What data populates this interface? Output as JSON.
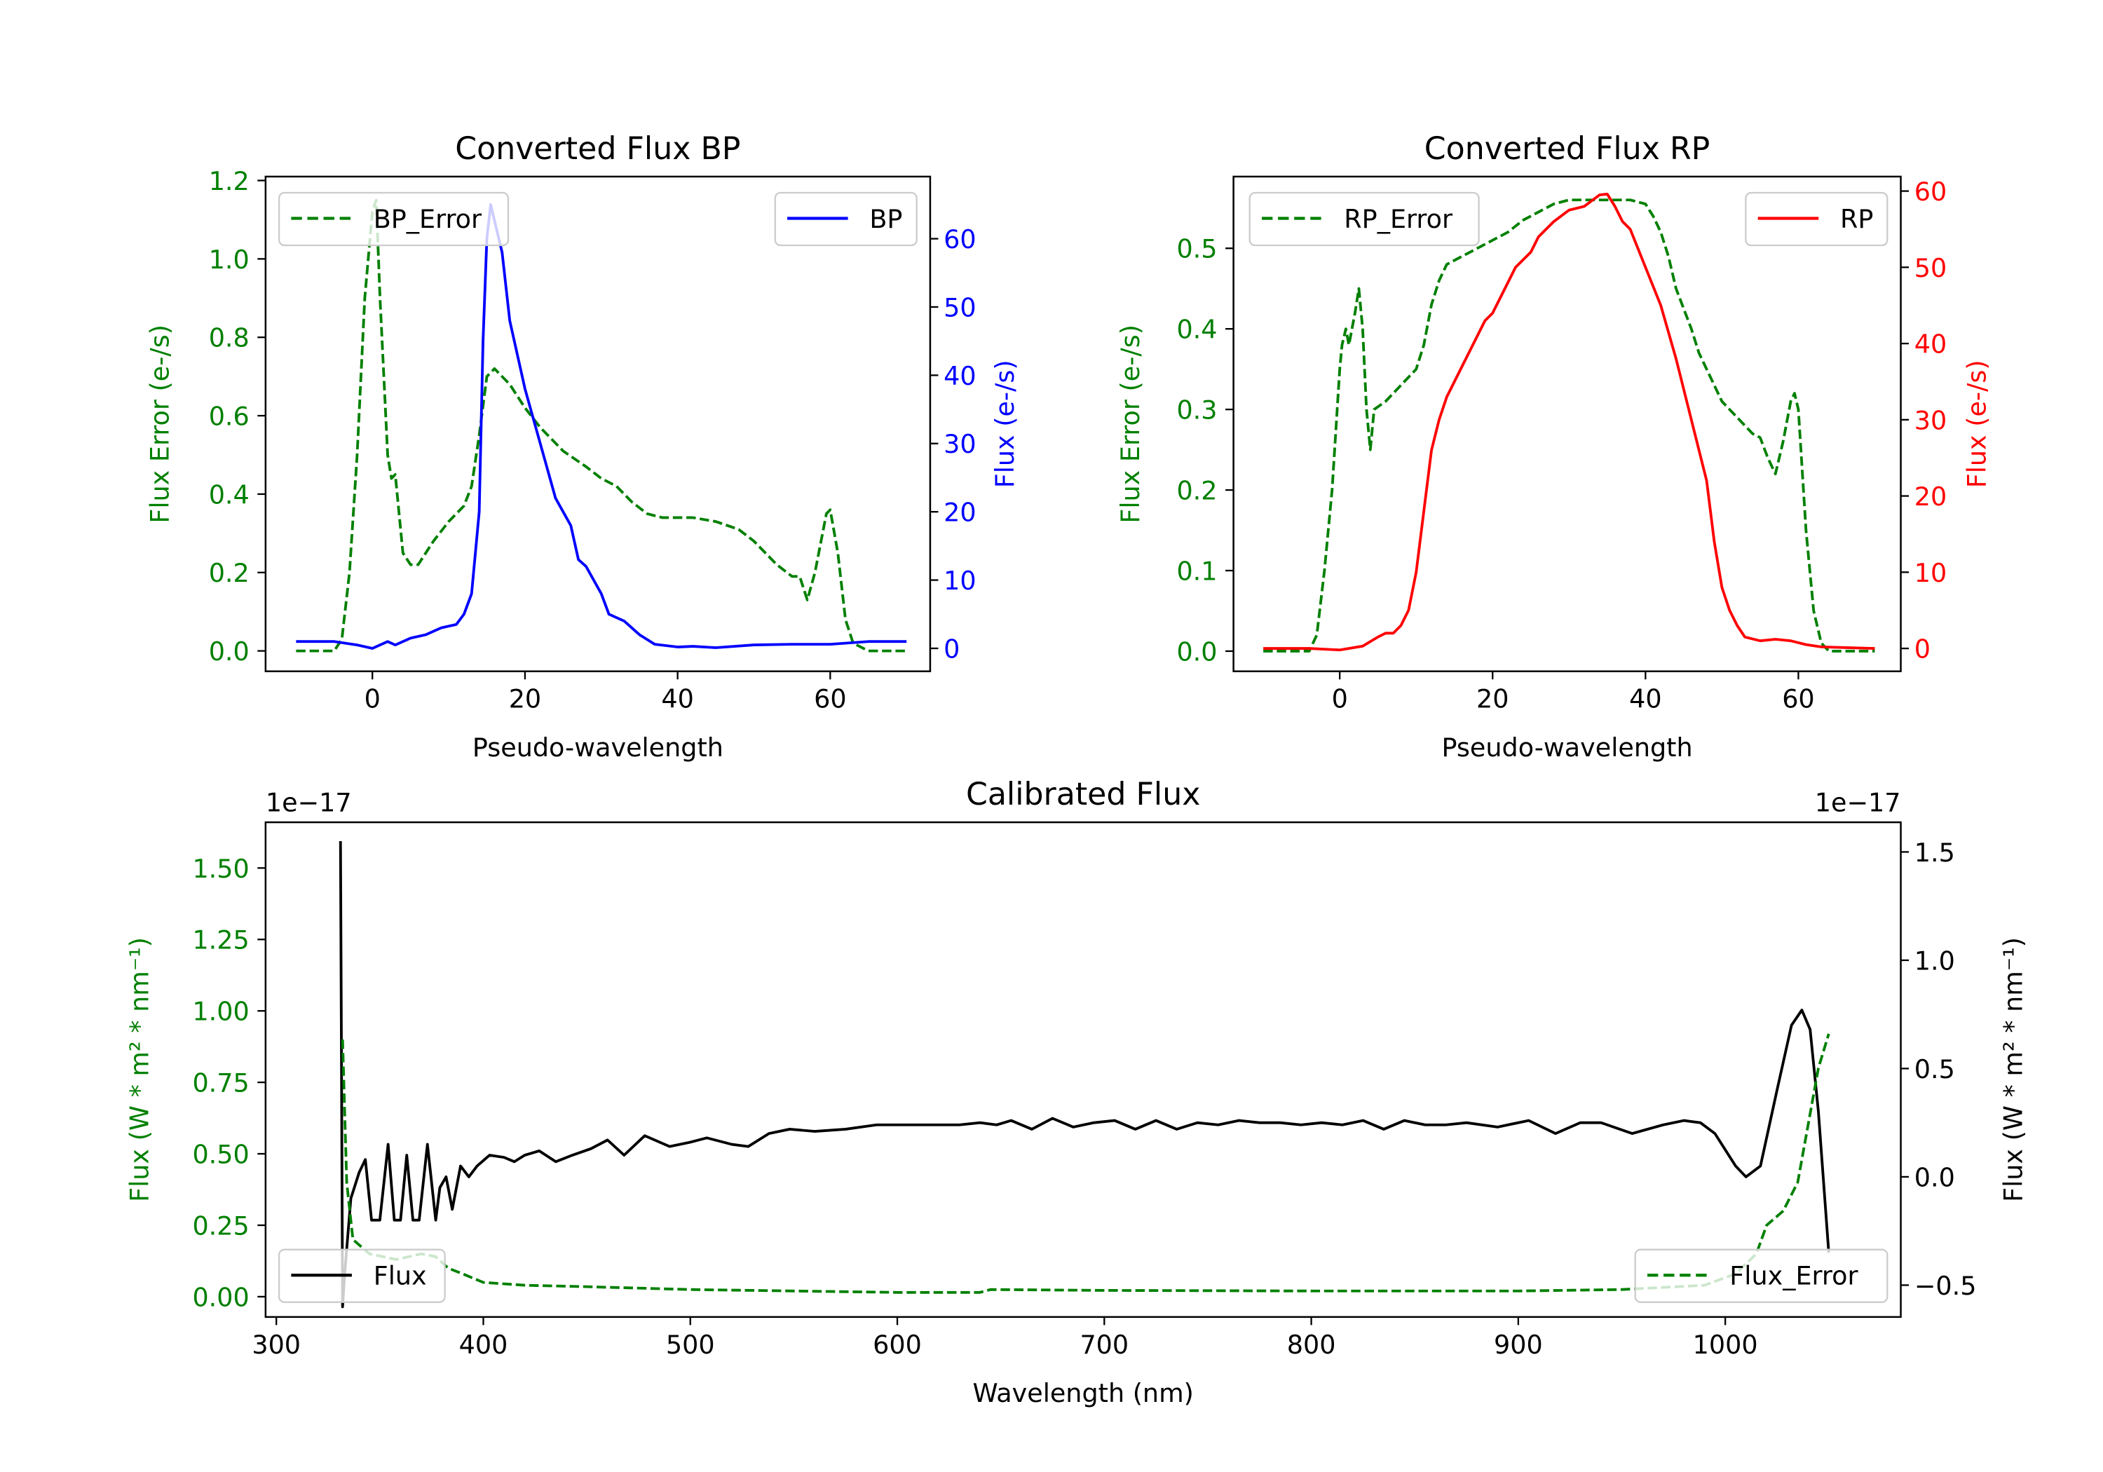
{
  "chart_data": [
    {
      "type": "line",
      "title": "Converted Flux BP",
      "xlabel": "Pseudo-wavelength",
      "ylabel_left": "Flux Error (e-/s)",
      "ylabel_right": "Flux (e-/s)",
      "left_color": "#008000",
      "right_color": "#0000ff",
      "xlim": [
        -14,
        73.1
      ],
      "ylim_left": [
        -0.052,
        1.21
      ],
      "ylim_right": [
        -3.36,
        69.1
      ],
      "xticks": {
        "values": [
          0,
          20,
          40,
          60
        ],
        "labels": [
          "0",
          "20",
          "40",
          "60"
        ]
      },
      "yticks_left": {
        "values": [
          0,
          0.2,
          0.4,
          0.6,
          0.8,
          1.0,
          1.2
        ],
        "labels": [
          "0.0",
          "0.2",
          "0.4",
          "0.6",
          "0.8",
          "1.0",
          "1.2"
        ]
      },
      "yticks_right": {
        "values": [
          0,
          10,
          20,
          30,
          40,
          50,
          60
        ],
        "labels": [
          "0",
          "10",
          "20",
          "30",
          "40",
          "50",
          "60"
        ]
      },
      "grid": false,
      "series": [
        {
          "name": "BP_Error",
          "axis": "left",
          "style": "dashed",
          "color": "#008000",
          "legend": "upper-left",
          "x": [
            -10,
            -5,
            -4,
            -3,
            -2,
            -1,
            0,
            0.5,
            1,
            2,
            2.5,
            3,
            3.5,
            4,
            5,
            6,
            7,
            8,
            10,
            12,
            13,
            14,
            15,
            16,
            18,
            20,
            22,
            25,
            28,
            30,
            32,
            34,
            36,
            38,
            42,
            45,
            48,
            50,
            53,
            55,
            56,
            57,
            58,
            59.5,
            60,
            61,
            62,
            63,
            65,
            70
          ],
          "y": [
            0,
            0,
            0.03,
            0.2,
            0.5,
            0.9,
            1.12,
            1.15,
            0.9,
            0.5,
            0.44,
            0.45,
            0.35,
            0.25,
            0.22,
            0.22,
            0.25,
            0.28,
            0.33,
            0.37,
            0.42,
            0.55,
            0.7,
            0.72,
            0.68,
            0.62,
            0.57,
            0.51,
            0.47,
            0.44,
            0.42,
            0.38,
            0.35,
            0.34,
            0.34,
            0.33,
            0.31,
            0.28,
            0.22,
            0.19,
            0.19,
            0.13,
            0.2,
            0.35,
            0.36,
            0.25,
            0.08,
            0.02,
            0,
            0
          ]
        },
        {
          "name": "BP",
          "axis": "right",
          "style": "solid",
          "color": "#0000ff",
          "legend": "upper-right",
          "x": [
            -10,
            -5,
            -2,
            0,
            2,
            3,
            5,
            7,
            9,
            11,
            12,
            13,
            14,
            14.5,
            15,
            15.5,
            17,
            18,
            20,
            22,
            24,
            26,
            27,
            28,
            30,
            31,
            33,
            35,
            37,
            40,
            42,
            45,
            50,
            55,
            60,
            65,
            70
          ],
          "y": [
            1,
            1,
            0.5,
            0,
            1,
            0.5,
            1.5,
            2,
            3,
            3.5,
            5,
            8,
            20,
            45,
            60,
            65,
            58,
            48,
            38,
            30,
            22,
            18,
            13,
            12,
            8,
            5,
            4,
            2,
            0.6,
            0.2,
            0.3,
            0.1,
            0.5,
            0.6,
            0.6,
            1,
            1
          ]
        }
      ]
    },
    {
      "type": "line",
      "title": "Converted Flux RP",
      "xlabel": "Pseudo-wavelength",
      "ylabel_left": "Flux Error (e-/s)",
      "ylabel_right": "Flux (e-/s)",
      "left_color": "#008000",
      "right_color": "#ff0000",
      "xlim": [
        -13.9,
        73.4
      ],
      "ylim_left": [
        -0.025,
        0.589
      ],
      "ylim_right": [
        -3.0,
        61.9
      ],
      "xticks": {
        "values": [
          0,
          20,
          40,
          60
        ],
        "labels": [
          "0",
          "20",
          "40",
          "60"
        ]
      },
      "yticks_left": {
        "values": [
          0,
          0.1,
          0.2,
          0.3,
          0.4,
          0.5
        ],
        "labels": [
          "0.0",
          "0.1",
          "0.2",
          "0.3",
          "0.4",
          "0.5"
        ]
      },
      "yticks_right": {
        "values": [
          0,
          10,
          20,
          30,
          40,
          50,
          60
        ],
        "labels": [
          "0",
          "10",
          "20",
          "30",
          "40",
          "50",
          "60"
        ]
      },
      "grid": false,
      "series": [
        {
          "name": "RP_Error",
          "axis": "left",
          "style": "dashed",
          "color": "#008000",
          "legend": "upper-left",
          "x": [
            -10,
            -4,
            -3,
            -2,
            -1,
            0,
            0.3,
            0.8,
            1.2,
            2,
            2.5,
            3,
            3.5,
            4,
            4.5,
            6,
            7,
            8,
            9,
            10,
            11,
            12,
            13,
            14,
            16,
            18,
            20,
            22,
            24,
            26,
            28,
            30,
            32,
            34,
            36,
            38,
            40,
            41,
            42,
            43,
            44,
            46,
            47,
            48,
            50,
            52,
            54,
            55,
            56,
            57,
            58,
            59,
            59.5,
            60,
            61,
            62,
            63,
            64,
            70
          ],
          "y": [
            0,
            0,
            0.02,
            0.1,
            0.2,
            0.35,
            0.38,
            0.4,
            0.38,
            0.42,
            0.45,
            0.4,
            0.3,
            0.25,
            0.3,
            0.31,
            0.32,
            0.33,
            0.34,
            0.35,
            0.38,
            0.43,
            0.46,
            0.48,
            0.49,
            0.5,
            0.51,
            0.52,
            0.535,
            0.545,
            0.555,
            0.56,
            0.56,
            0.56,
            0.56,
            0.56,
            0.555,
            0.54,
            0.52,
            0.49,
            0.45,
            0.4,
            0.37,
            0.35,
            0.31,
            0.29,
            0.27,
            0.265,
            0.24,
            0.22,
            0.26,
            0.31,
            0.32,
            0.3,
            0.15,
            0.05,
            0.01,
            0,
            0
          ]
        },
        {
          "name": "RP",
          "axis": "right",
          "style": "solid",
          "color": "#ff0000",
          "legend": "upper-right",
          "x": [
            -10,
            -4,
            0,
            3,
            5,
            6,
            7,
            8,
            9,
            10,
            11,
            12,
            13,
            14,
            15,
            16,
            17,
            18,
            19,
            20,
            21,
            22,
            23,
            24,
            25,
            26,
            28,
            30,
            32,
            34,
            35,
            36,
            37,
            38,
            40,
            42,
            44,
            46,
            48,
            49,
            50,
            51,
            52,
            53,
            55,
            57,
            59,
            61,
            63,
            70
          ],
          "y": [
            0,
            0,
            -0.2,
            0.3,
            1.5,
            2,
            2,
            3,
            5,
            10,
            18,
            26,
            30,
            33,
            35,
            37,
            39,
            41,
            43,
            44,
            46,
            48,
            50,
            51,
            52,
            54,
            56,
            57.5,
            58,
            59.5,
            59.6,
            58,
            56,
            55,
            50,
            45,
            38,
            30,
            22,
            14,
            8,
            5,
            3,
            1.5,
            1,
            1.2,
            1,
            0.5,
            0.2,
            0
          ]
        }
      ]
    },
    {
      "type": "line",
      "title": "Calibrated Flux",
      "xlabel": "Wavelength (nm)",
      "ylabel_left": "Flux (W * m² * nm⁻¹)",
      "ylabel_right": "Flux (W * m² * nm⁻¹)",
      "offset_left": "1e−17",
      "offset_right": "1e−17",
      "left_color": "#008000",
      "right_color": "#000000",
      "xlim": [
        294.8,
        1084.8
      ],
      "ylim_left": [
        -0.071,
        1.66
      ],
      "ylim_right": [
        -0.647,
        1.637
      ],
      "xticks": {
        "values": [
          300,
          400,
          500,
          600,
          700,
          800,
          900,
          1000
        ],
        "labels": [
          "300",
          "400",
          "500",
          "600",
          "700",
          "800",
          "900",
          "1000"
        ]
      },
      "yticks_left": {
        "values": [
          0,
          0.25,
          0.5,
          0.75,
          1.0,
          1.25,
          1.5
        ],
        "labels": [
          "0.00",
          "0.25",
          "0.50",
          "0.75",
          "1.00",
          "1.25",
          "1.50"
        ]
      },
      "yticks_right": {
        "values": [
          -0.5,
          0,
          0.5,
          1.0,
          1.5
        ],
        "labels": [
          "−0.5",
          "0.0",
          "0.5",
          "1.0",
          "1.5"
        ]
      },
      "grid": false,
      "series": [
        {
          "name": "Flux",
          "axis": "right",
          "style": "solid",
          "color": "#000000",
          "legend": "lower-left",
          "x": [
            331,
            332,
            333,
            336,
            340,
            343,
            346,
            350,
            354,
            357,
            360,
            363,
            366,
            369,
            373,
            377,
            379,
            382,
            385,
            389,
            393,
            397,
            403,
            410,
            415,
            420,
            427,
            435,
            443,
            452,
            460,
            468,
            478,
            490,
            500,
            508,
            520,
            528,
            538,
            548,
            560,
            575,
            590,
            610,
            630,
            640,
            648,
            655,
            665,
            675,
            685,
            695,
            705,
            715,
            725,
            735,
            745,
            755,
            765,
            775,
            785,
            795,
            805,
            815,
            825,
            835,
            845,
            855,
            865,
            875,
            890,
            905,
            918,
            930,
            940,
            955,
            970,
            980,
            988,
            995,
            1005,
            1010,
            1017,
            1025,
            1032,
            1037,
            1041,
            1045,
            1050
          ],
          "y": [
            1.55,
            -0.6,
            -0.45,
            -0.1,
            0.02,
            0.08,
            -0.2,
            -0.2,
            0.15,
            -0.2,
            -0.2,
            0.1,
            -0.2,
            -0.2,
            0.15,
            -0.2,
            -0.05,
            0.0,
            -0.15,
            0.05,
            0.0,
            0.05,
            0.1,
            0.09,
            0.07,
            0.1,
            0.12,
            0.07,
            0.1,
            0.13,
            0.17,
            0.1,
            0.19,
            0.14,
            0.16,
            0.18,
            0.15,
            0.14,
            0.2,
            0.22,
            0.21,
            0.22,
            0.24,
            0.24,
            0.24,
            0.25,
            0.24,
            0.26,
            0.22,
            0.27,
            0.23,
            0.25,
            0.26,
            0.22,
            0.26,
            0.22,
            0.25,
            0.24,
            0.26,
            0.25,
            0.25,
            0.24,
            0.25,
            0.24,
            0.26,
            0.22,
            0.26,
            0.24,
            0.24,
            0.25,
            0.23,
            0.26,
            0.2,
            0.25,
            0.25,
            0.2,
            0.24,
            0.26,
            0.25,
            0.2,
            0.05,
            0.0,
            0.05,
            0.4,
            0.7,
            0.77,
            0.68,
            0.3,
            -0.35
          ]
        },
        {
          "name": "Flux_Error",
          "axis": "left",
          "style": "dashed",
          "color": "#008000",
          "legend": "lower-right",
          "x": [
            332,
            334,
            337,
            345,
            358,
            370,
            377,
            383,
            390,
            400,
            420,
            450,
            500,
            600,
            640,
            645,
            700,
            800,
            900,
            950,
            990,
            1005,
            1015,
            1020,
            1028,
            1035,
            1040,
            1045,
            1050
          ],
          "y": [
            0.9,
            0.4,
            0.2,
            0.15,
            0.13,
            0.15,
            0.14,
            0.1,
            0.08,
            0.05,
            0.04,
            0.035,
            0.025,
            0.015,
            0.015,
            0.025,
            0.022,
            0.02,
            0.02,
            0.025,
            0.04,
            0.08,
            0.15,
            0.25,
            0.3,
            0.4,
            0.6,
            0.8,
            0.92
          ]
        }
      ]
    }
  ]
}
